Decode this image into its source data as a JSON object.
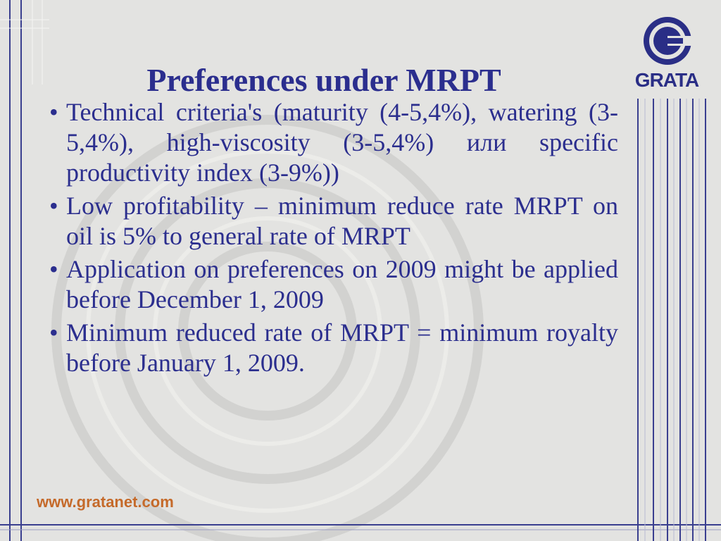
{
  "slide": {
    "title": "Preferences under MRPT",
    "bullets": [
      {
        "marker": "•",
        "text": "Technical criteria's (maturity (4-5,4%), watering (3-5,4%), high-viscosity (3-5,4%) или specific productivity index (3-9%))"
      },
      {
        "marker": "•",
        "text": "Low profitability – minimum reduce rate MRPT on oil is 5% to general rate of MRPT"
      },
      {
        "marker": "•",
        "text": "Application on preferences on 2009 might be applied before December 1, 2009"
      },
      {
        "marker": "•",
        "text": "Minimum reduced rate of MRPT = minimum royalty before January 1, 2009."
      }
    ],
    "footer_url": "www.gratanet.com"
  },
  "logo": {
    "text": "GRATA",
    "icon": "grata-g-logo-icon"
  },
  "colors": {
    "background": "#e3e3e1",
    "text": "#2b2e8e",
    "accent_lines": "#3a3f8f",
    "footer": "#c56a2a"
  }
}
